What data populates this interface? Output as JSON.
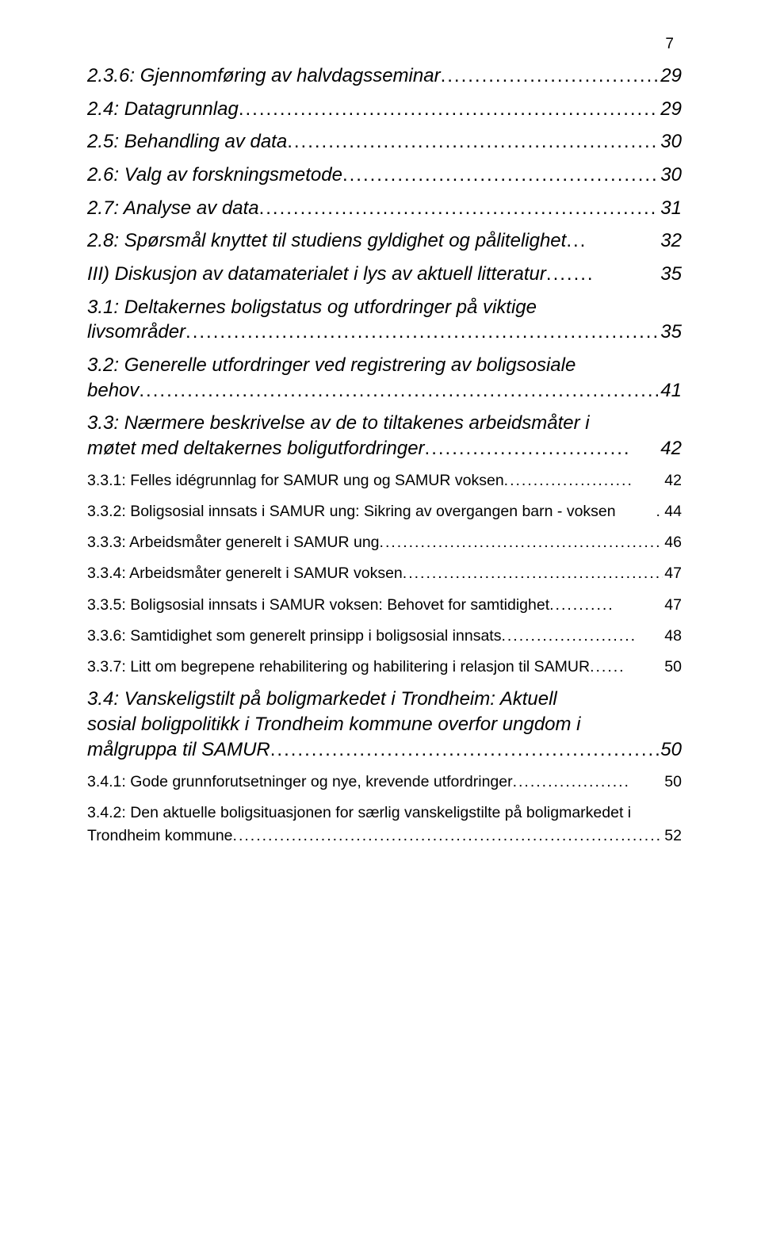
{
  "page_number": "7",
  "entries": [
    {
      "level": "l2",
      "label": "2.3.6: Gjennomføring av halvdagsseminar",
      "page": "29",
      "leader": "..............................................",
      "multiline": false
    },
    {
      "level": "l2",
      "label": "2.4: Datagrunnlag",
      "page": "29",
      "leader": "..................................................................",
      "multiline": false
    },
    {
      "level": "l2",
      "label": "2.5: Behandling av data",
      "page": "30",
      "leader": "........................................................",
      "multiline": false
    },
    {
      "level": "l2",
      "label": "2.6: Valg av forskningsmetode",
      "page": "30",
      "leader": "..............................................",
      "multiline": false
    },
    {
      "level": "l2",
      "label": "2.7: Analyse av data",
      "page": "31",
      "leader": "..............................................................",
      "multiline": false
    },
    {
      "level": "l2",
      "label": "2.8: Spørsmål knyttet til studiens gyldighet og pålitelighet",
      "page": "32",
      "leader": "...",
      "multiline": false
    },
    {
      "level": "l2",
      "label_line1": "III) Diskusjon av datamaterialet i lys av aktuell litteratur",
      "label_line2": "",
      "page": "35",
      "leader": ".......",
      "multiline": false
    },
    {
      "level": "l2",
      "label_line1": "3.1: Deltakernes boligstatus og utfordringer på viktige",
      "label_line2": "livsområder",
      "page": "35",
      "leader": "............................................................................",
      "multiline": true
    },
    {
      "level": "l2",
      "label_line1": "3.2: Generelle utfordringer ved registrering av boligsosiale",
      "label_line2": "behov",
      "page": "41",
      "leader": "......................................................................................",
      "multiline": true
    },
    {
      "level": "l2",
      "label_line1": "3.3: Nærmere beskrivelse av de to tiltakenes arbeidsmåter i",
      "label_line2": "møtet med deltakernes boligutfordringer",
      "page": "42",
      "leader": "..............................",
      "multiline": true
    },
    {
      "level": "l3",
      "label": "3.3.1: Felles idégrunnlag for SAMUR ung og SAMUR voksen",
      "page": "42",
      "leader": "......................",
      "multiline": false
    },
    {
      "level": "l3",
      "label": "3.3.2: Boligsosial innsats i SAMUR ung: Sikring av overgangen barn - voksen",
      "page": "44",
      "leader": ".",
      "multiline": false,
      "noleader": true
    },
    {
      "level": "l3",
      "label": "3.3.3: Arbeidsmåter generelt i SAMUR ung",
      "page": "46",
      "leader": "....................................................",
      "multiline": false
    },
    {
      "level": "l3",
      "label": "3.3.4: Arbeidsmåter generelt i SAMUR voksen",
      "page": "47",
      "leader": "..............................................",
      "multiline": false
    },
    {
      "level": "l3",
      "label": "3.3.5: Boligsosial innsats i SAMUR voksen: Behovet for samtidighet",
      "page": "47",
      "leader": "...........",
      "multiline": false
    },
    {
      "level": "l3",
      "label": "3.3.6: Samtidighet som generelt prinsipp i boligsosial innsats",
      "page": "48",
      "leader": ".......................",
      "multiline": false
    },
    {
      "level": "l3",
      "label": "3.3.7: Litt om begrepene rehabilitering og habilitering i relasjon til SAMUR",
      "page": "50",
      "leader": "......",
      "multiline": false
    },
    {
      "level": "l2",
      "label_line1": "3.4: Vanskeligstilt på boligmarkedet i Trondheim: Aktuell",
      "label_line2": "sosial boligpolitikk i Trondheim kommune overfor ungdom i",
      "label_line3": "målgruppa til SAMUR",
      "page": "50",
      "leader": "............................................................",
      "multiline": true,
      "lines": 3
    },
    {
      "level": "l3",
      "label": "3.4.1: Gode grunnforutsetninger og nye, krevende utfordringer",
      "page": "50",
      "leader": "....................",
      "multiline": false
    },
    {
      "level": "l3",
      "label_line1": "3.4.2: Den aktuelle boligsituasjonen for særlig vanskeligstilte på boligmarkedet i",
      "label_line2": "Trondheim kommune",
      "page": "52",
      "leader": "..........................................................................................",
      "multiline": true
    }
  ]
}
